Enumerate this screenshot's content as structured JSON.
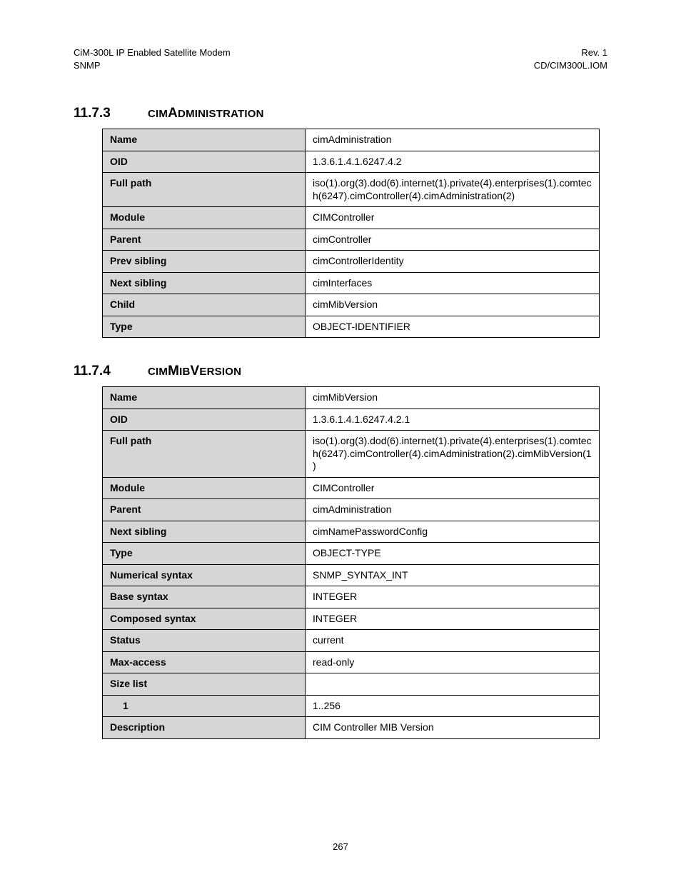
{
  "header": {
    "left_line1": "CiM-300L IP Enabled Satellite Modem",
    "left_line2": "SNMP",
    "right_line1": "Rev. 1",
    "right_line2": "CD/CIM300L.IOM"
  },
  "sections": [
    {
      "number": "11.7.3",
      "title_parts": [
        "CIM",
        "A",
        "DMINISTRATION"
      ],
      "rows": [
        {
          "label": "Name",
          "value": "cimAdministration"
        },
        {
          "label": "OID",
          "value": "1.3.6.1.4.1.6247.4.2"
        },
        {
          "label": "Full path",
          "value": "iso(1).org(3).dod(6).internet(1).private(4).enterprises(1).comtech(6247).cimController(4).cimAdministration(2)"
        },
        {
          "label": "Module",
          "value": "CIMController"
        },
        {
          "label": "Parent",
          "value": "cimController"
        },
        {
          "label": "Prev sibling",
          "value": "cimControllerIdentity"
        },
        {
          "label": "Next sibling",
          "value": "cimInterfaces"
        },
        {
          "label": "Child",
          "value": "cimMibVersion"
        },
        {
          "label": "Type",
          "value": "OBJECT-IDENTIFIER"
        }
      ]
    },
    {
      "number": "11.7.4",
      "title_parts": [
        "CIM",
        "M",
        "IB",
        "V",
        "ERSION"
      ],
      "rows": [
        {
          "label": "Name",
          "value": "cimMibVersion"
        },
        {
          "label": "OID",
          "value": "1.3.6.1.4.1.6247.4.2.1"
        },
        {
          "label": "Full path",
          "value": "iso(1).org(3).dod(6).internet(1).private(4).enterprises(1).comtech(6247).cimController(4).cimAdministration(2).cimMibVersion(1)"
        },
        {
          "label": "Module",
          "value": "CIMController"
        },
        {
          "label": "Parent",
          "value": "cimAdministration"
        },
        {
          "label": "Next sibling",
          "value": "cimNamePasswordConfig"
        },
        {
          "label": "Type",
          "value": "OBJECT-TYPE"
        },
        {
          "label": "Numerical syntax",
          "value": "SNMP_SYNTAX_INT"
        },
        {
          "label": "Base syntax",
          "value": "INTEGER"
        },
        {
          "label": "Composed syntax",
          "value": "INTEGER"
        },
        {
          "label": "Status",
          "value": "current"
        },
        {
          "label": "Max-access",
          "value": "read-only"
        },
        {
          "label": "Size list",
          "value": ""
        },
        {
          "label": "1",
          "indent": true,
          "value": "1..256"
        },
        {
          "label": "Description",
          "value": "CIM Controller MIB Version"
        }
      ]
    }
  ],
  "page_number": "267",
  "colors": {
    "label_bg": "#d6d6d6",
    "border": "#000000",
    "text": "#000000",
    "page_bg": "#ffffff"
  },
  "fonts": {
    "body_pt": 14,
    "header_pt": 13,
    "section_num_pt": 19,
    "section_title_small_pt": 15
  }
}
